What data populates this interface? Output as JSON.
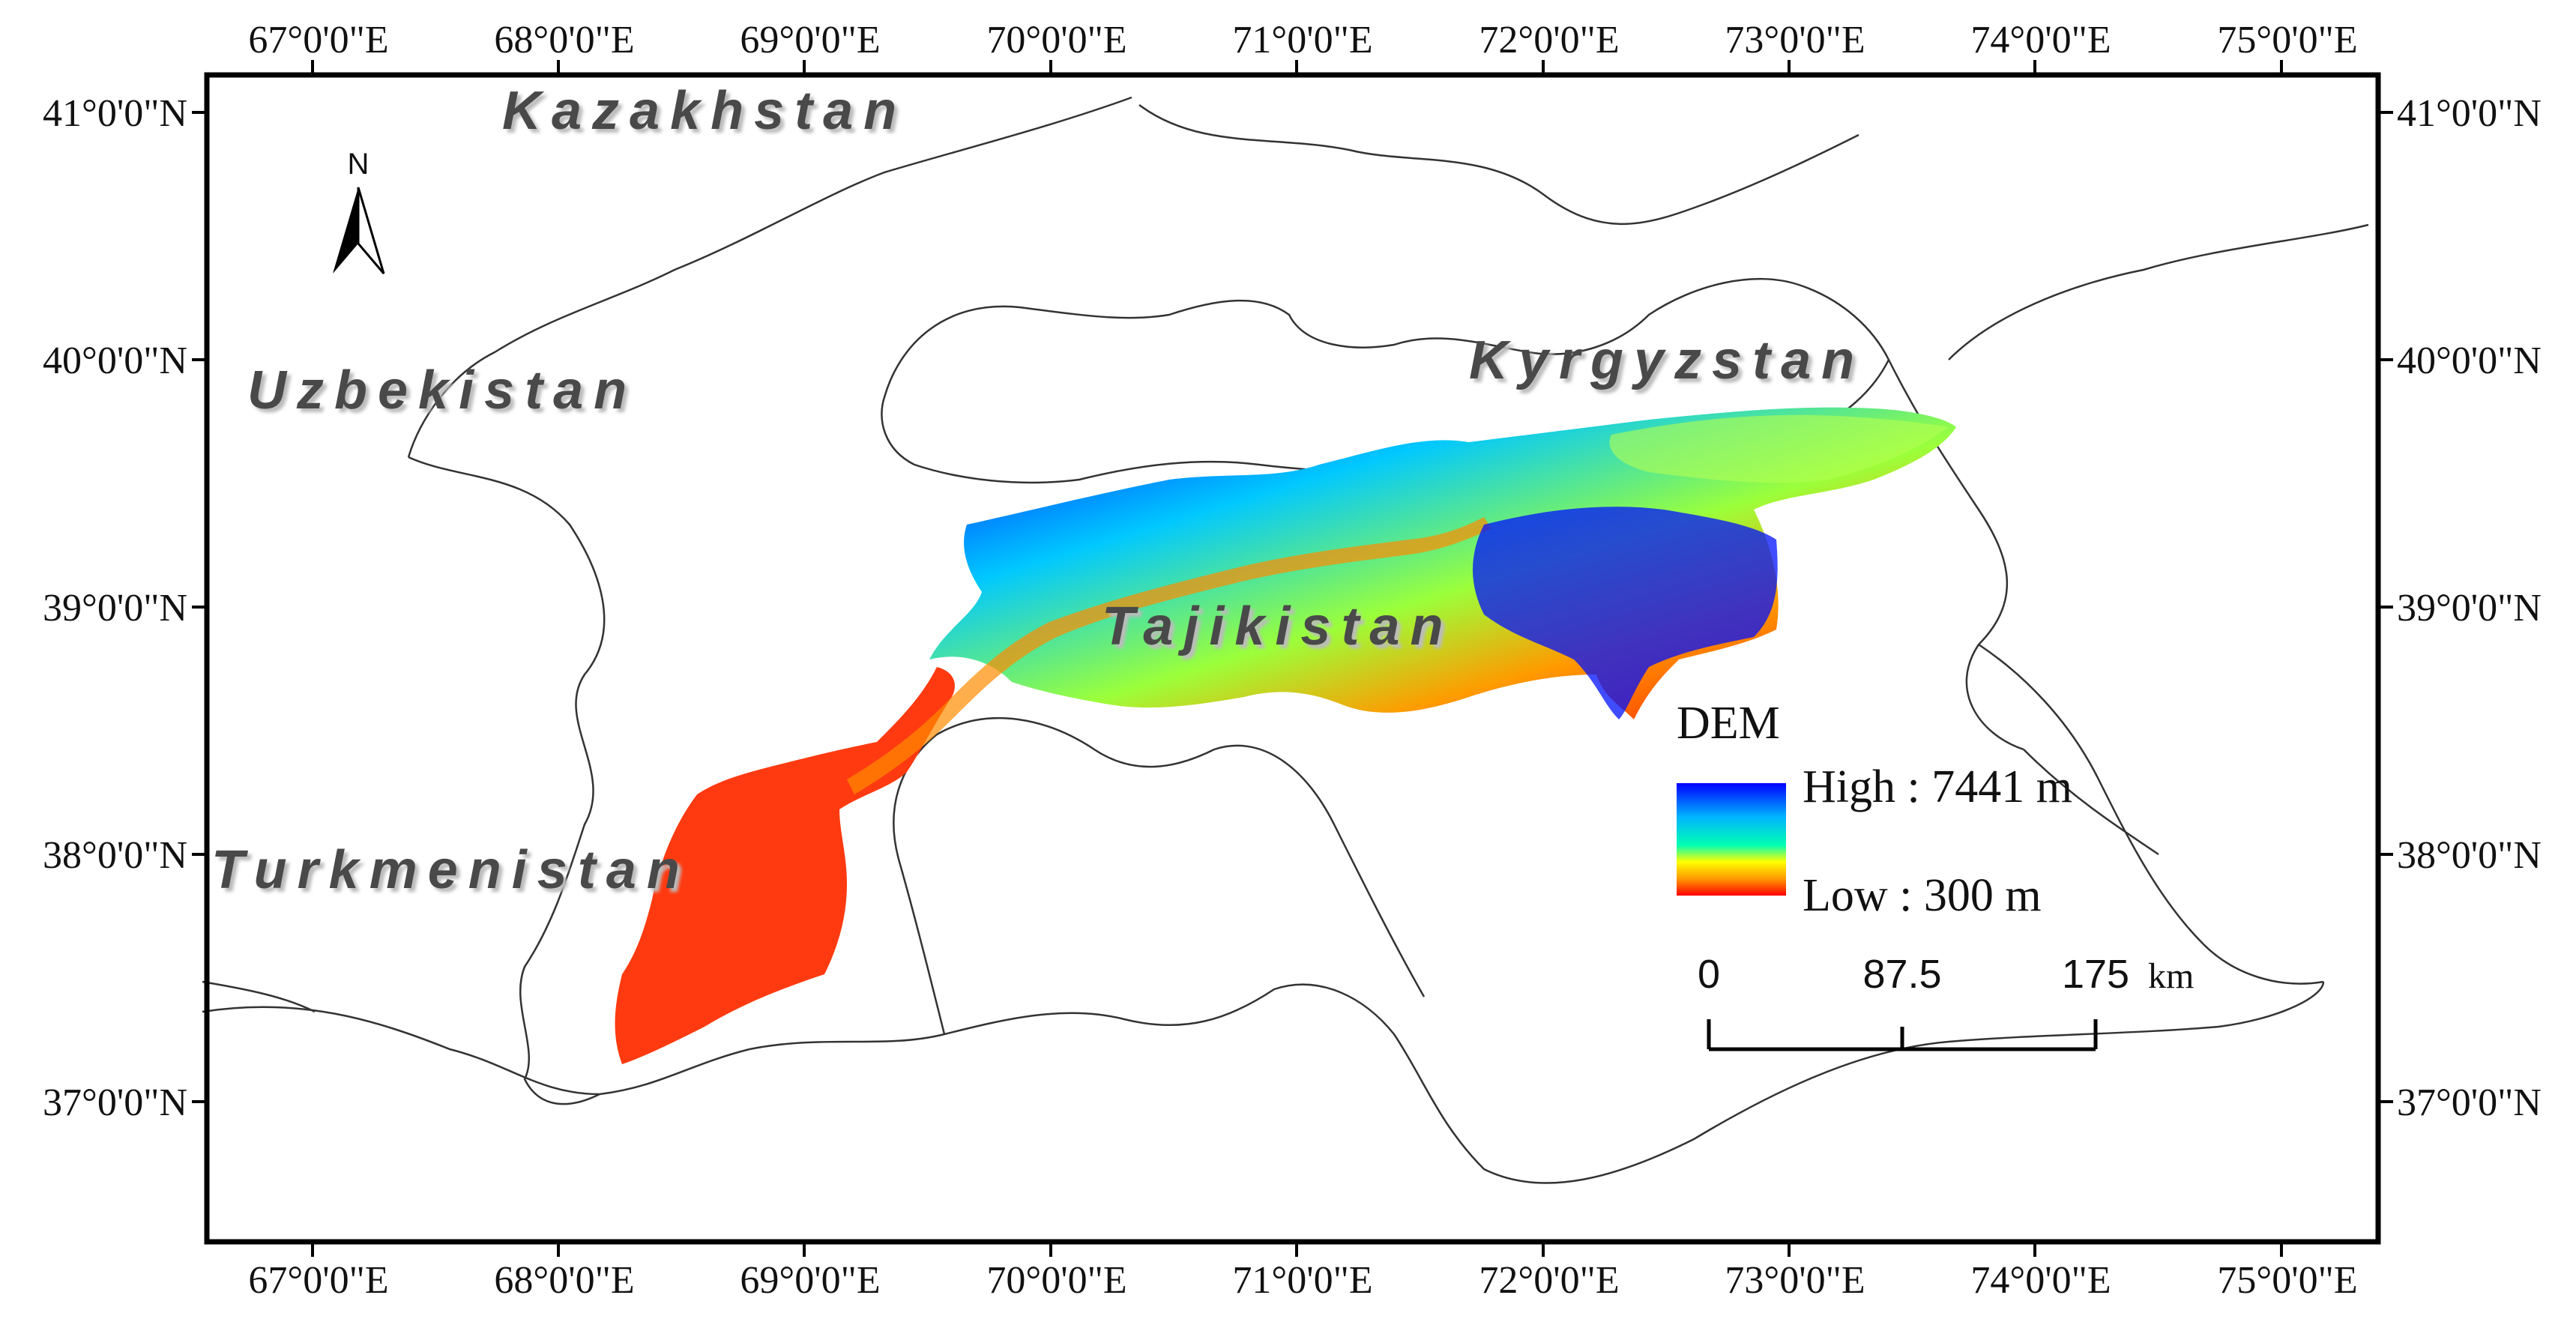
{
  "map": {
    "lon_ticks": [
      "67°0'0\"E",
      "68°0'0\"E",
      "69°0'0\"E",
      "70°0'0\"E",
      "71°0'0\"E",
      "72°0'0\"E",
      "73°0'0\"E",
      "74°0'0\"E",
      "75°0'0\"E"
    ],
    "lat_ticks": [
      "41°0'0\"N",
      "40°0'0\"N",
      "39°0'0\"N",
      "38°0'0\"N",
      "37°0'0\"N"
    ],
    "countries": [
      "Kazakhstan",
      "Uzbekistan",
      "Kyrgyzstan",
      "Tajikistan",
      "Turkmenistan"
    ],
    "north_arrow": {
      "label": "N",
      "icon": "north-arrow-icon"
    },
    "legend": {
      "title": "DEM",
      "high_label": "High : 7441 m",
      "low_label": "Low : 300 m",
      "colors": [
        "#0000ff",
        "#0080ff",
        "#00d0ff",
        "#00ffc8",
        "#ffff00",
        "#ff9a00",
        "#ff0000"
      ]
    },
    "scale_bar": {
      "labels": [
        "0",
        "87.5",
        "175"
      ],
      "unit": "km"
    },
    "frame_color": "#000000"
  }
}
